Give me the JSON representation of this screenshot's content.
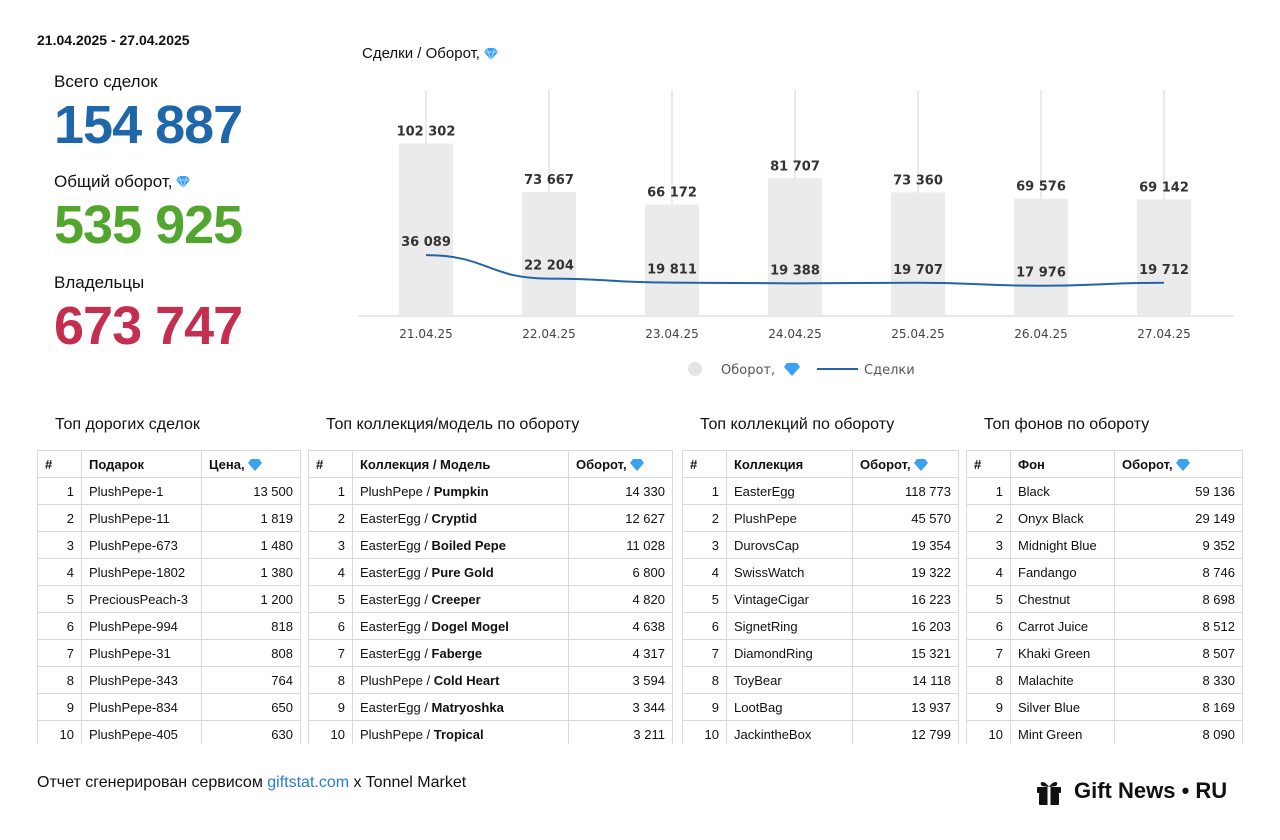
{
  "header": {
    "date_range": "21.04.2025 - 27.04.2025"
  },
  "kpis": {
    "total_deals_label": "Всего сделок",
    "total_deals_value": "154 887",
    "turnover_label": "Общий оборот,",
    "turnover_value": "535 925",
    "owners_label": "Владельцы",
    "owners_value": "673 747"
  },
  "colors": {
    "blue": "#1f67a8",
    "green": "#52a62d",
    "red": "#c42f4f",
    "bar": "#ebebeb",
    "line": "#2563a8",
    "link": "#2a7bd1",
    "gem": "#3aa0f0"
  },
  "chart_data": {
    "type": "bar",
    "title": "Сделки / Оборот,",
    "categories": [
      "21.04.25",
      "22.04.25",
      "23.04.25",
      "24.04.25",
      "25.04.25",
      "26.04.25",
      "27.04.25"
    ],
    "series": [
      {
        "name": "Оборот,",
        "type": "bar",
        "values": [
          102302,
          73667,
          66172,
          81707,
          73360,
          69576,
          69142
        ],
        "labels": [
          "102 302",
          "73 667",
          "66 172",
          "81 707",
          "73 360",
          "69 576",
          "69 142"
        ]
      },
      {
        "name": "Сделки",
        "type": "line",
        "values": [
          36089,
          22204,
          19811,
          19388,
          19707,
          17976,
          19712
        ],
        "labels": [
          "36 089",
          "22 204",
          "19 811",
          "19 388",
          "19 707",
          "17 976",
          "19 712"
        ]
      }
    ],
    "legend": [
      "Оборот,",
      "Сделки"
    ],
    "legend_position": "bottom",
    "ylim": [
      0,
      140000
    ]
  },
  "tables": {
    "expensive": {
      "title": "Топ дорогих сделок",
      "headers": [
        "#",
        "Подарок",
        "Цена,"
      ],
      "rows": [
        [
          "1",
          "PlushPepe-1",
          "13 500"
        ],
        [
          "2",
          "PlushPepe-11",
          "1 819"
        ],
        [
          "3",
          "PlushPepe-673",
          "1 480"
        ],
        [
          "4",
          "PlushPepe-1802",
          "1 380"
        ],
        [
          "5",
          "PreciousPeach-3",
          "1 200"
        ],
        [
          "6",
          "PlushPepe-994",
          "818"
        ],
        [
          "7",
          "PlushPepe-31",
          "808"
        ],
        [
          "8",
          "PlushPepe-343",
          "764"
        ],
        [
          "9",
          "PlushPepe-834",
          "650"
        ],
        [
          "10",
          "PlushPepe-405",
          "630"
        ]
      ]
    },
    "models": {
      "title": "Топ коллекция/модель по обороту",
      "headers": [
        "#",
        "Коллекция / Модель",
        "Оборот,"
      ],
      "rows": [
        [
          "1",
          "PlushPepe / ",
          "Pumpkin",
          "14 330"
        ],
        [
          "2",
          "EasterEgg / ",
          "Cryptid",
          "12 627"
        ],
        [
          "3",
          "EasterEgg / ",
          "Boiled Pepe",
          "11 028"
        ],
        [
          "4",
          "EasterEgg / ",
          "Pure Gold",
          "6 800"
        ],
        [
          "5",
          "EasterEgg / ",
          "Creeper",
          "4 820"
        ],
        [
          "6",
          "EasterEgg / ",
          "Dogel Mogel",
          "4 638"
        ],
        [
          "7",
          "EasterEgg / ",
          "Faberge",
          "4 317"
        ],
        [
          "8",
          "PlushPepe / ",
          "Cold Heart",
          "3 594"
        ],
        [
          "9",
          "EasterEgg / ",
          "Matryoshka",
          "3 344"
        ],
        [
          "10",
          "PlushPepe / ",
          "Tropical",
          "3 211"
        ]
      ]
    },
    "collections": {
      "title": "Топ коллекций по обороту",
      "headers": [
        "#",
        "Коллекция",
        "Оборот,"
      ],
      "rows": [
        [
          "1",
          "EasterEgg",
          "118 773"
        ],
        [
          "2",
          "PlushPepe",
          "45 570"
        ],
        [
          "3",
          "DurovsCap",
          "19 354"
        ],
        [
          "4",
          "SwissWatch",
          "19 322"
        ],
        [
          "5",
          "VintageCigar",
          "16 223"
        ],
        [
          "6",
          "SignetRing",
          "16 203"
        ],
        [
          "7",
          "DiamondRing",
          "15 321"
        ],
        [
          "8",
          "ToyBear",
          "14 118"
        ],
        [
          "9",
          "LootBag",
          "13 937"
        ],
        [
          "10",
          "JackintheBox",
          "12 799"
        ]
      ]
    },
    "backgrounds": {
      "title": "Топ фонов по обороту",
      "headers": [
        "#",
        "Фон",
        "Оборот,"
      ],
      "rows": [
        [
          "1",
          "Black",
          "59 136"
        ],
        [
          "2",
          "Onyx Black",
          "29 149"
        ],
        [
          "3",
          "Midnight Blue",
          "9 352"
        ],
        [
          "4",
          "Fandango",
          "8 746"
        ],
        [
          "5",
          "Chestnut",
          "8 698"
        ],
        [
          "6",
          "Carrot Juice",
          "8 512"
        ],
        [
          "7",
          "Khaki Green",
          "8 507"
        ],
        [
          "8",
          "Malachite",
          "8 330"
        ],
        [
          "9",
          "Silver Blue",
          "8 169"
        ],
        [
          "10",
          "Mint Green",
          "8 090"
        ]
      ]
    }
  },
  "footer": {
    "prefix": "Отчет сгенерирован сервисом ",
    "link": "giftstat.com",
    "suffix": " x Tonnel Market"
  },
  "brand": {
    "name": "Gift News • RU",
    "icon": "gift-icon"
  }
}
